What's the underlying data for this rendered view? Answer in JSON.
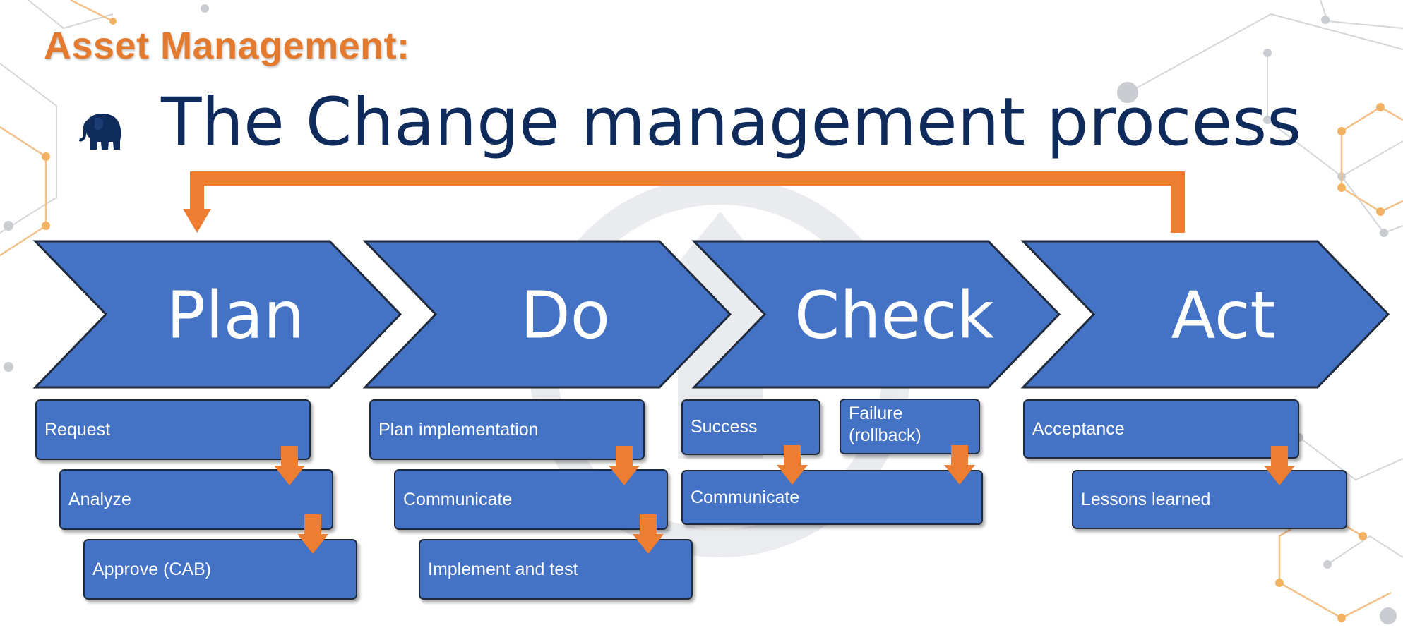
{
  "heading": "Asset Management:",
  "title": "The Change management process",
  "bullet_icon": "elephant-icon",
  "colors": {
    "heading": "#e37a2e",
    "title": "#0f2b5b",
    "phase_fill": "#4472c4",
    "box_fill": "#4472c4",
    "arrow": "#ed7d31",
    "outline": "#1f2a3c",
    "decoration_orange": "#f2b263",
    "decoration_gray": "#c9ccd0"
  },
  "phases": [
    {
      "label": "Plan",
      "steps": [
        {
          "label": "Request"
        },
        {
          "label": "Analyze"
        },
        {
          "label": "Approve (CAB)"
        }
      ]
    },
    {
      "label": "Do",
      "steps": [
        {
          "label": "Plan implementation"
        },
        {
          "label": "Communicate"
        },
        {
          "label": "Implement and test"
        }
      ]
    },
    {
      "label": "Check",
      "steps": [
        {
          "label": "Success"
        },
        {
          "label": "Failure (rollback)"
        },
        {
          "label": "Communicate"
        }
      ]
    },
    {
      "label": "Act",
      "steps": [
        {
          "label": "Acceptance"
        },
        {
          "label": "Lessons learned"
        }
      ]
    }
  ]
}
